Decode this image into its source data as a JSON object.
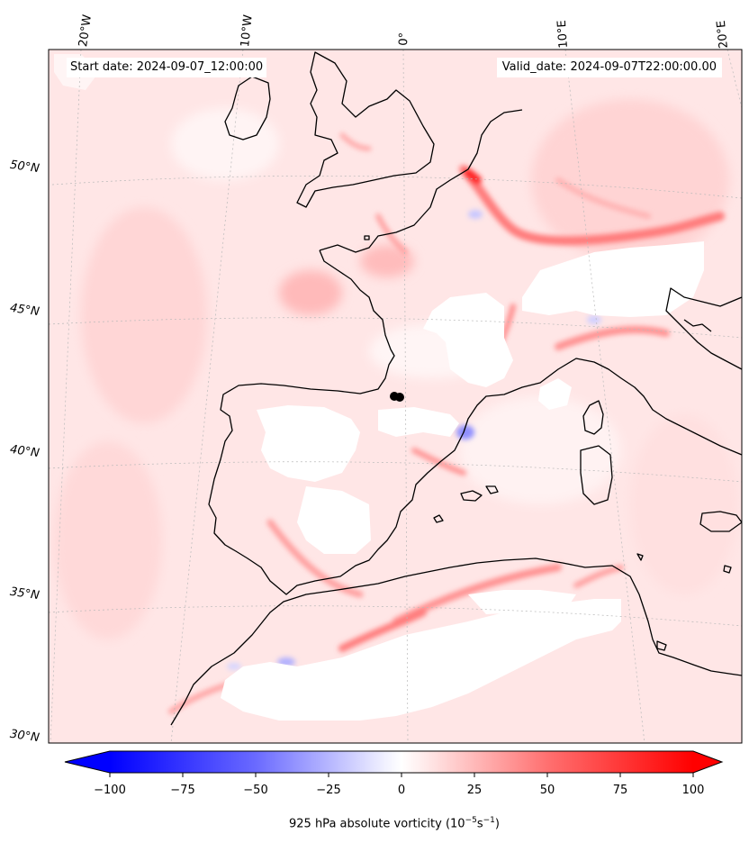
{
  "header": {
    "start_date": "Start date: 2024-09-07_12:00:00",
    "valid_date": "Valid_date: 2024-09-07T22:00:00.00"
  },
  "map": {
    "lon_labels": [
      "20°W",
      "10°W",
      "0°",
      "10°E",
      "20°E"
    ],
    "lat_labels": [
      "50°N",
      "45°N",
      "40°N",
      "35°N",
      "30°N"
    ],
    "background_color": "#ffe8e8",
    "coastline_color": "#000000"
  },
  "colorbar": {
    "ticks": [
      "−100",
      "−75",
      "−50",
      "−25",
      "0",
      "25",
      "50",
      "75",
      "100"
    ],
    "label": "925 hPa absolute vorticity (10",
    "label_exp1": "−5",
    "label_mid": "s",
    "label_exp2": "−1",
    "label_end": ")",
    "min_color": "#0000ff",
    "mid_color": "#ffffff",
    "max_color": "#ff0000"
  }
}
